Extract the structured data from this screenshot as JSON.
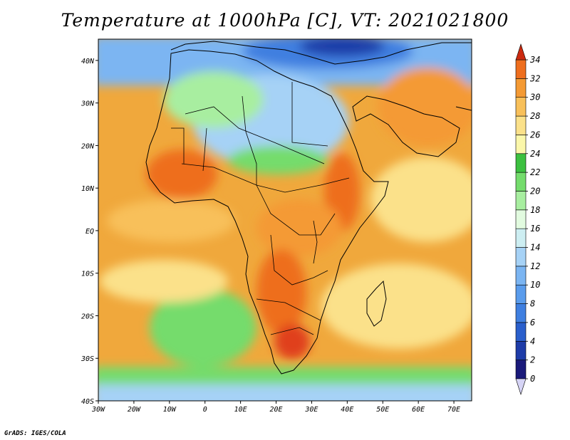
{
  "title": "Temperature at 1000hPa [C], VT: 2021021800",
  "footer": "GrADS: IGES/COLA",
  "map": {
    "lon_range": [
      -30,
      75
    ],
    "lat_range": [
      -40,
      45
    ],
    "lon_ticks": [
      "30W",
      "20W",
      "10W",
      "0",
      "10E",
      "20E",
      "30E",
      "40E",
      "50E",
      "60E",
      "70E"
    ],
    "lat_ticks": [
      "40S",
      "30S",
      "20S",
      "10S",
      "EQ",
      "10N",
      "20N",
      "30N",
      "40N"
    ],
    "background_color": "#f0a83c"
  },
  "colorbar": {
    "labels": [
      "0",
      "2",
      "4",
      "6",
      "8",
      "10",
      "12",
      "14",
      "16",
      "18",
      "20",
      "22",
      "24",
      "26",
      "28",
      "30",
      "32",
      "34"
    ],
    "colors": [
      "#1a1a7a",
      "#1e3ca8",
      "#2a5fcc",
      "#3f7fe0",
      "#5a9cec",
      "#7bb5f2",
      "#a6d2f6",
      "#cdeef2",
      "#e2fbe0",
      "#a8eea0",
      "#74dc6c",
      "#3cc040",
      "#fbf7aa",
      "#fbe18a",
      "#f8c05a",
      "#f49a34",
      "#ee6e1e",
      "#e0401a"
    ],
    "under_color": "#d6d4f6",
    "over_color": "#cc2a10"
  }
}
